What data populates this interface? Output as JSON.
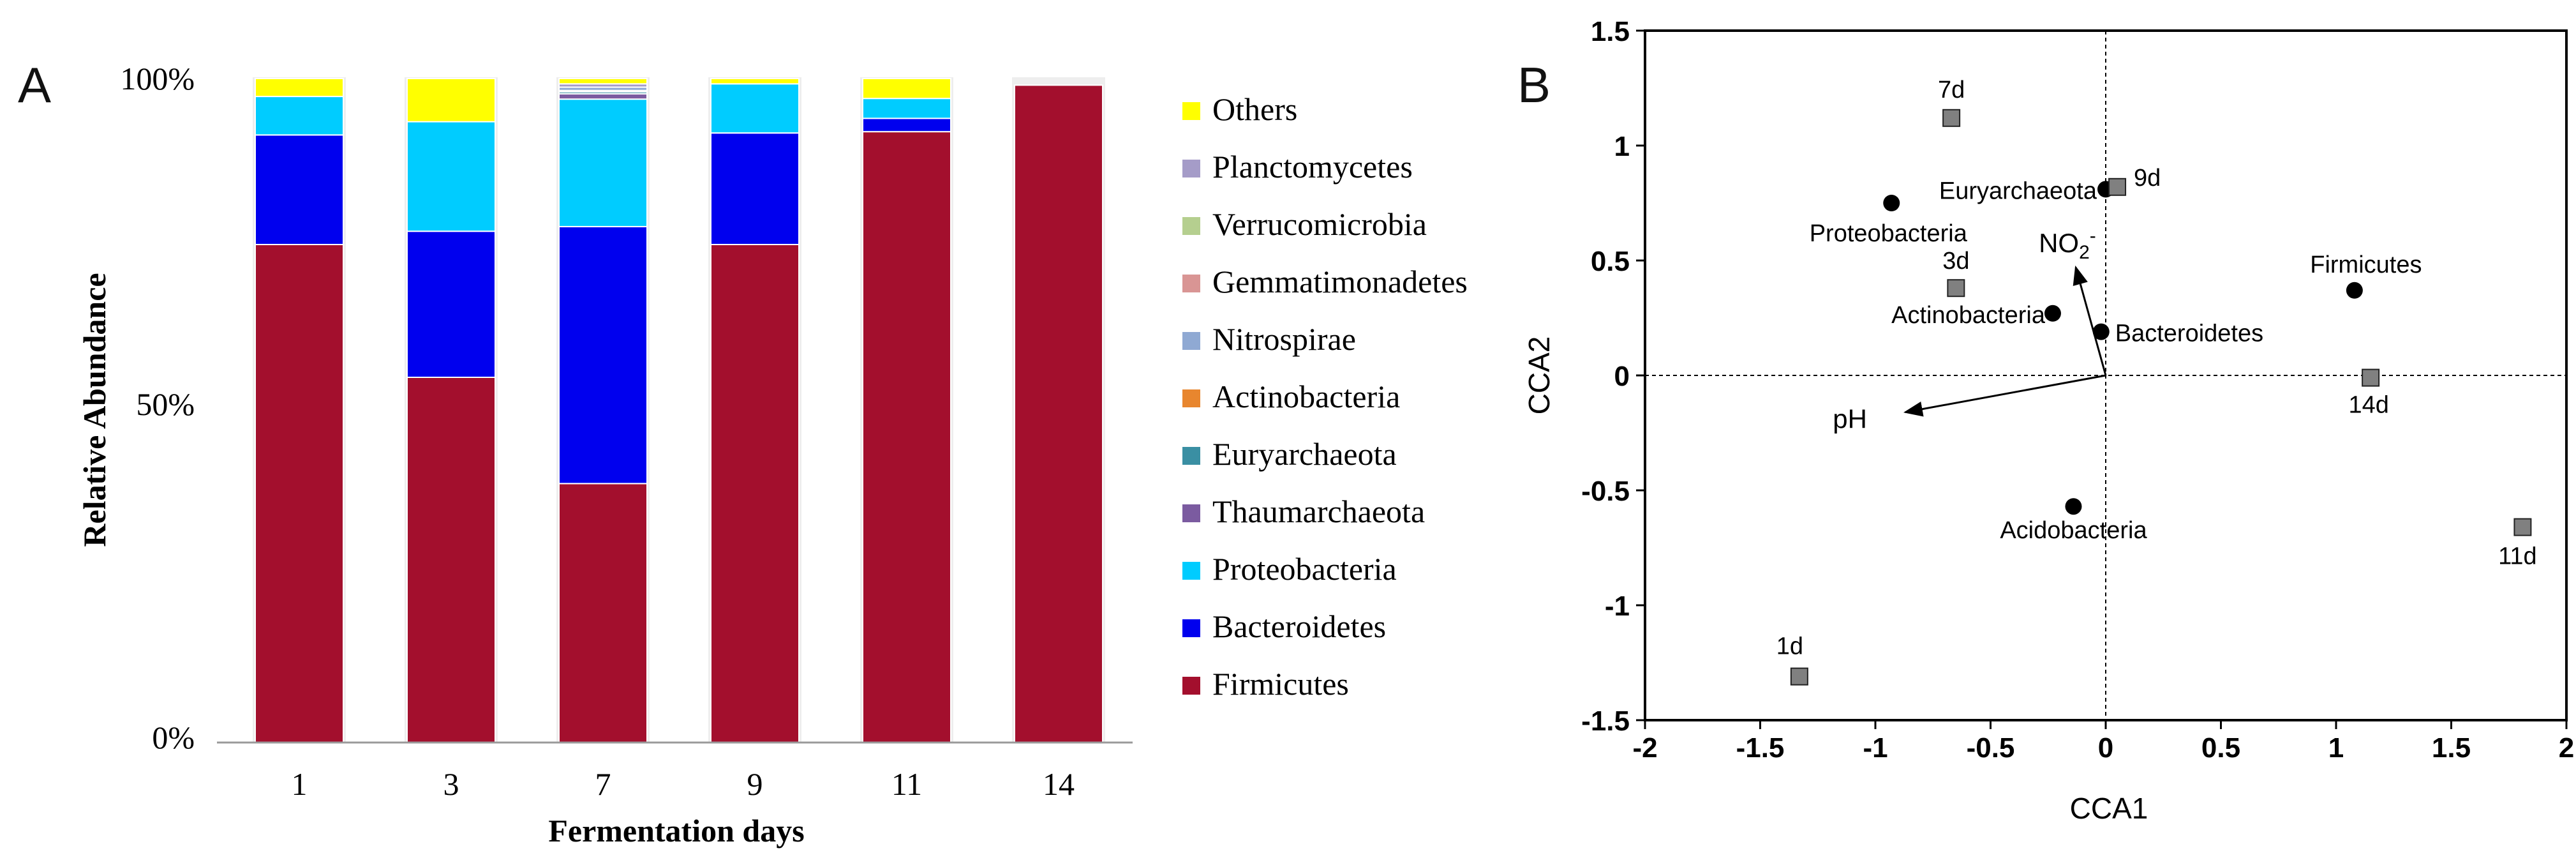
{
  "panel_a": {
    "letter": "A",
    "chart_data": {
      "type": "bar",
      "stacked": true,
      "xlabel": "Fermentation days",
      "ylabel": "Relative Abundance",
      "categories": [
        "1",
        "3",
        "7",
        "9",
        "11",
        "14"
      ],
      "yticks": [
        "0%",
        "50%",
        "100%"
      ],
      "ylim": [
        0,
        100
      ],
      "series": [
        {
          "name": "Firmicutes",
          "color": "#A30F2D",
          "values": [
            75,
            55,
            39,
            75,
            92,
            99
          ]
        },
        {
          "name": "Bacteroidetes",
          "color": "#0000EE",
          "values": [
            16.5,
            22,
            38.7,
            16.8,
            2,
            0
          ]
        },
        {
          "name": "Proteobacteria",
          "color": "#00CCFF",
          "values": [
            5.8,
            16.5,
            19.2,
            7.4,
            3,
            0
          ]
        },
        {
          "name": "Thaumarchaeota",
          "color": "#7B5BA0",
          "values": [
            0,
            0,
            0.8,
            0,
            0,
            0
          ]
        },
        {
          "name": "Euryarchaeota",
          "color": "#3A8FA3",
          "values": [
            0,
            0,
            0.3,
            0,
            0,
            0
          ]
        },
        {
          "name": "Actinobacteria",
          "color": "#E8862E",
          "values": [
            0,
            0,
            0.2,
            0,
            0,
            0
          ]
        },
        {
          "name": "Nitrospirae",
          "color": "#8FA9D3",
          "values": [
            0,
            0,
            0.5,
            0,
            0,
            0
          ]
        },
        {
          "name": "Gemmatimonadetes",
          "color": "#D99594",
          "values": [
            0,
            0,
            0,
            0,
            0,
            0
          ]
        },
        {
          "name": "Verrucomicrobia",
          "color": "#B5CF8F",
          "values": [
            0,
            0,
            0,
            0,
            0,
            0
          ]
        },
        {
          "name": "Planctomycetes",
          "color": "#A59CC8",
          "values": [
            0,
            0,
            0.5,
            0,
            0,
            0
          ]
        },
        {
          "name": "Others",
          "color": "#FFFF00",
          "values": [
            2.7,
            6.5,
            0.8,
            0.8,
            3,
            0
          ]
        }
      ],
      "legend_order": [
        "Others",
        "Planctomycetes",
        "Verrucomicrobia",
        "Gemmatimonadetes",
        "Nitrospirae",
        "Actinobacteria",
        "Euryarchaeota",
        "Thaumarchaeota",
        "Proteobacteria",
        "Bacteroidetes",
        "Firmicutes"
      ],
      "legend_position": "right"
    }
  },
  "panel_b": {
    "letter": "B",
    "chart_data": {
      "type": "scatter",
      "xlabel": "CCA1",
      "ylabel": "CCA2",
      "xlim": [
        -2,
        2
      ],
      "ylim": [
        -1.5,
        1.5
      ],
      "xticks": [
        "-2",
        "-1.5",
        "-1",
        "-0.5",
        "0",
        "0.5",
        "1",
        "1.5",
        "2"
      ],
      "yticks": [
        "-1.5",
        "-1",
        "-0.5",
        "0",
        "0.5",
        "1",
        "1.5"
      ],
      "samples": [
        {
          "label": "1d",
          "x": -1.33,
          "y": -1.31
        },
        {
          "label": "3d",
          "x": -0.65,
          "y": 0.38
        },
        {
          "label": "7d",
          "x": -0.67,
          "y": 1.12
        },
        {
          "label": "9d",
          "x": 0.05,
          "y": 0.82
        },
        {
          "label": "11d",
          "x": 1.81,
          "y": -0.66
        },
        {
          "label": "14d",
          "x": 1.15,
          "y": -0.01
        }
      ],
      "species": [
        {
          "label": "Proteobacteria",
          "x": -0.93,
          "y": 0.75
        },
        {
          "label": "Euryarchaeota",
          "x": 0.0,
          "y": 0.81
        },
        {
          "label": "Actinobacteria",
          "x": -0.23,
          "y": 0.27
        },
        {
          "label": "Bacteroidetes",
          "x": -0.02,
          "y": 0.19
        },
        {
          "label": "Firmicutes",
          "x": 1.08,
          "y": 0.37
        },
        {
          "label": "Acidobacteria",
          "x": -0.14,
          "y": -0.57
        }
      ],
      "vectors": [
        {
          "label": "NO2",
          "superscript": "-",
          "x": -0.13,
          "y": 0.47
        },
        {
          "label": "pH",
          "x": -0.87,
          "y": -0.16
        }
      ]
    }
  }
}
